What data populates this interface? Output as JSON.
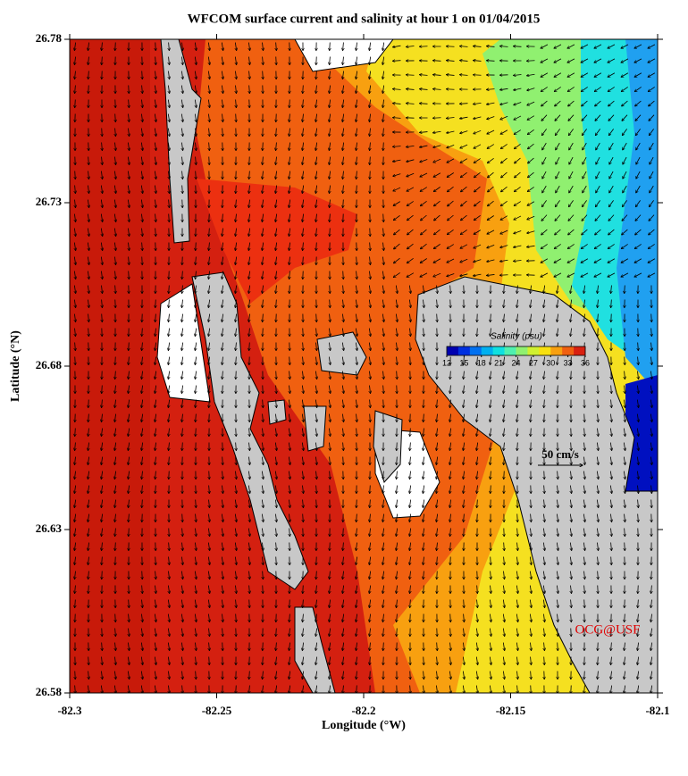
{
  "chart_data": {
    "type": "map",
    "title": "WFCOM surface current and salinity at hour 1 on 01/04/2015",
    "x_label": "Longitude (°W)",
    "y_label": "Latitude (°N)",
    "xlim": [
      -82.3,
      -82.1
    ],
    "xticks": [
      -82.3,
      -82.25,
      -82.2,
      -82.15,
      -82.1
    ],
    "ylim": [
      26.58,
      26.78
    ],
    "yticks": [
      26.58,
      26.63,
      26.68,
      26.73,
      26.78
    ],
    "colorbar": {
      "label": "Salinity (psu)",
      "lim": [
        12,
        36
      ],
      "ticks": [
        12,
        15,
        18,
        21,
        24,
        27,
        30,
        33,
        36
      ],
      "colors": [
        "#0000b0",
        "#0030e0",
        "#0070f0",
        "#00b0f0",
        "#10e0e0",
        "#50f0b0",
        "#90f070",
        "#d0f030",
        "#f8e010",
        "#f8a010",
        "#f06010",
        "#d82010"
      ]
    },
    "scale_label": "50 cm/s",
    "credit": "OCG@USF"
  }
}
